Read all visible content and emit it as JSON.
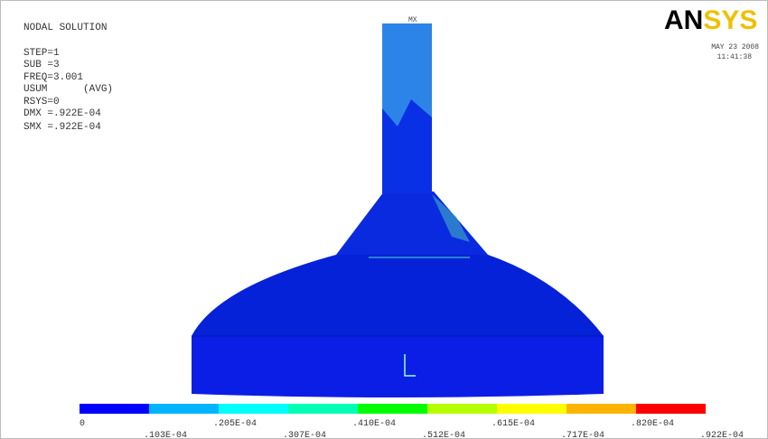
{
  "info": [
    "NODAL SOLUTION",
    "STEP=1",
    "SUB =3",
    "FREQ=3.001",
    "USUM      (AVG)",
    "RSYS=0",
    "DMX =.922E-04",
    "SMX =.922E-04"
  ],
  "logo": {
    "left": "AN",
    "right": "SYS"
  },
  "timestamp": {
    "date": "MAY 23 2008",
    "time": "11:41:38"
  },
  "max_marker": "MX",
  "legend": {
    "labels": [
      "0",
      ".103E-04",
      ".205E-04",
      ".307E-04",
      ".410E-04",
      ".512E-04",
      ".615E-04",
      ".717E-04",
      ".820E-04",
      ".922E-04"
    ]
  }
}
